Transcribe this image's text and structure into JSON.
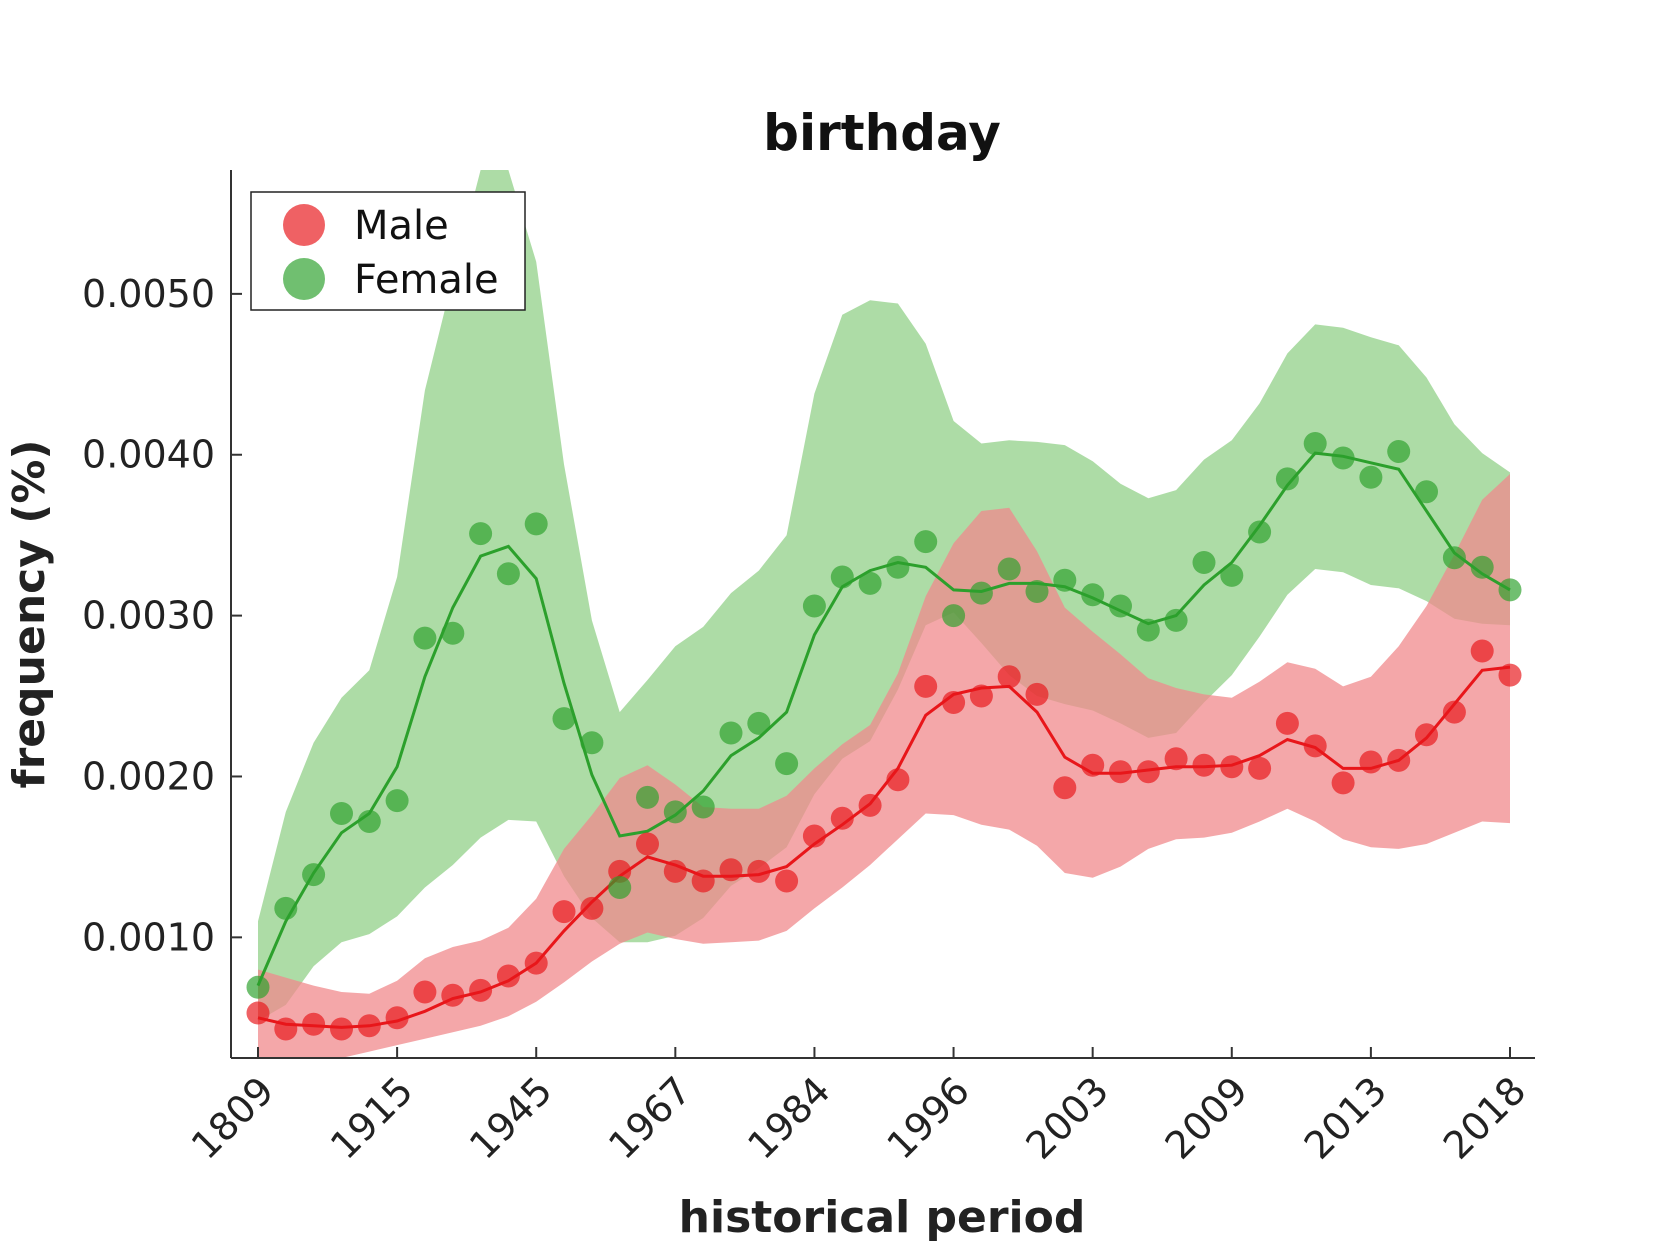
{
  "chart_data": {
    "type": "scatter",
    "title": "birthday",
    "xlabel": "historical period",
    "ylabel": "frequency (%)",
    "x_tick_labels": [
      "1809",
      "1915",
      "1945",
      "1967",
      "1984",
      "1996",
      "2003",
      "2009",
      "2013",
      "2018"
    ],
    "y_tick_labels": [
      "0.0010",
      "0.0020",
      "0.0030",
      "0.0040",
      "0.0050"
    ],
    "y_ticks": [
      0.001,
      0.002,
      0.003,
      0.004,
      0.005
    ],
    "ylim": [
      0.00025,
      0.00577
    ],
    "x_count": 46,
    "legend": {
      "position": "top-left",
      "entries": [
        "Male",
        "Female"
      ]
    },
    "series": [
      {
        "name": "Male",
        "color": "#e8161a",
        "band_color": "#f08a8c",
        "points": [
          0.00053,
          0.00043,
          0.00046,
          0.00043,
          0.00045,
          0.0005,
          0.00066,
          0.00064,
          0.00067,
          0.00076,
          0.00084,
          0.00116,
          0.00118,
          0.00141,
          0.00158,
          0.00141,
          0.00135,
          0.00142,
          0.00141,
          0.00135,
          0.00163,
          0.00174,
          0.00182,
          0.00198,
          0.00256,
          0.00246,
          0.0025,
          0.00262,
          0.00251,
          0.00193,
          0.00207,
          0.00203,
          0.00203,
          0.00211,
          0.00207,
          0.00206,
          0.00205,
          0.00233,
          0.00219,
          0.00196,
          0.00209,
          0.0021,
          0.00226,
          0.0024,
          0.00278,
          0.00263
        ],
        "smooth": [
          0.0005,
          0.00046,
          0.00045,
          0.00044,
          0.00045,
          0.00048,
          0.00054,
          0.00062,
          0.00066,
          0.00073,
          0.00084,
          0.00104,
          0.00122,
          0.00138,
          0.0015,
          0.00145,
          0.00138,
          0.00138,
          0.00139,
          0.00144,
          0.00158,
          0.0017,
          0.00183,
          0.00205,
          0.00238,
          0.00251,
          0.00255,
          0.00256,
          0.0024,
          0.00212,
          0.00202,
          0.00202,
          0.00204,
          0.00206,
          0.00206,
          0.00207,
          0.00213,
          0.00223,
          0.00218,
          0.00205,
          0.00205,
          0.0021,
          0.00224,
          0.00245,
          0.00266,
          0.00268
        ],
        "band_upper": [
          0.0008,
          0.00075,
          0.0007,
          0.00066,
          0.00065,
          0.00073,
          0.00087,
          0.00094,
          0.00098,
          0.00106,
          0.00124,
          0.00155,
          0.00176,
          0.00199,
          0.00207,
          0.00195,
          0.00181,
          0.0018,
          0.0018,
          0.00188,
          0.00205,
          0.0022,
          0.00232,
          0.00264,
          0.00312,
          0.00345,
          0.00365,
          0.00367,
          0.0034,
          0.00305,
          0.0029,
          0.00276,
          0.00261,
          0.00255,
          0.00251,
          0.00249,
          0.00259,
          0.00271,
          0.00267,
          0.00256,
          0.00262,
          0.00281,
          0.00306,
          0.00338,
          0.00372,
          0.00388
        ],
        "band_lower": [
          0.00025,
          0.00025,
          0.00025,
          0.00025,
          0.00029,
          0.00033,
          0.00037,
          0.00041,
          0.00045,
          0.00051,
          0.0006,
          0.00072,
          0.00085,
          0.00096,
          0.00103,
          0.00099,
          0.00096,
          0.00097,
          0.00098,
          0.00104,
          0.00118,
          0.00131,
          0.00145,
          0.00161,
          0.00177,
          0.00176,
          0.0017,
          0.00167,
          0.00157,
          0.0014,
          0.00137,
          0.00144,
          0.00155,
          0.00161,
          0.00162,
          0.00165,
          0.00172,
          0.0018,
          0.00172,
          0.00161,
          0.00156,
          0.00155,
          0.00158,
          0.00165,
          0.00172,
          0.00171
        ]
      },
      {
        "name": "Female",
        "color": "#2ca02c",
        "band_color": "#8ecf84",
        "points": [
          0.00069,
          0.00118,
          0.00139,
          0.00177,
          0.00172,
          0.00185,
          0.00286,
          0.00289,
          0.00351,
          0.00326,
          0.00357,
          0.00236,
          0.00221,
          0.00131,
          0.00187,
          0.00178,
          0.00181,
          0.00227,
          0.00233,
          0.00208,
          0.00306,
          0.00324,
          0.0032,
          0.0033,
          0.00346,
          0.003,
          0.00314,
          0.00329,
          0.00315,
          0.00322,
          0.00313,
          0.00306,
          0.00291,
          0.00297,
          0.00333,
          0.00325,
          0.00352,
          0.00385,
          0.00407,
          0.00398,
          0.00386,
          0.00402,
          0.00377,
          0.00336,
          0.0033,
          0.00316
        ],
        "smooth": [
          0.0007,
          0.0011,
          0.0014,
          0.00165,
          0.00177,
          0.00206,
          0.00262,
          0.00305,
          0.00337,
          0.00343,
          0.00323,
          0.00258,
          0.00201,
          0.00163,
          0.00166,
          0.00176,
          0.00191,
          0.00213,
          0.00224,
          0.0024,
          0.00288,
          0.00318,
          0.00328,
          0.00333,
          0.0033,
          0.00316,
          0.00315,
          0.0032,
          0.0032,
          0.00318,
          0.00311,
          0.00303,
          0.00295,
          0.003,
          0.00319,
          0.00333,
          0.00356,
          0.00381,
          0.00401,
          0.00399,
          0.00395,
          0.00391,
          0.00365,
          0.00339,
          0.00326,
          0.00316
        ],
        "band_upper": [
          0.0011,
          0.00178,
          0.00221,
          0.00249,
          0.00266,
          0.00324,
          0.0044,
          0.0051,
          0.00577,
          0.00577,
          0.0052,
          0.00394,
          0.00297,
          0.0024,
          0.0026,
          0.00281,
          0.00293,
          0.00314,
          0.00328,
          0.0035,
          0.00438,
          0.00487,
          0.00496,
          0.00494,
          0.00469,
          0.00421,
          0.00407,
          0.00409,
          0.00408,
          0.00406,
          0.00396,
          0.00382,
          0.00373,
          0.00378,
          0.00397,
          0.00409,
          0.00432,
          0.00463,
          0.00481,
          0.00479,
          0.00473,
          0.00468,
          0.00448,
          0.00419,
          0.00401,
          0.00389
        ],
        "band_lower": [
          0.00048,
          0.00058,
          0.00082,
          0.00097,
          0.00102,
          0.00113,
          0.00131,
          0.00145,
          0.00162,
          0.00173,
          0.00172,
          0.00138,
          0.00112,
          0.00097,
          0.00097,
          0.00101,
          0.00112,
          0.00132,
          0.00143,
          0.00156,
          0.00189,
          0.00211,
          0.00222,
          0.00254,
          0.00294,
          0.00302,
          0.00283,
          0.00263,
          0.0025,
          0.00245,
          0.00241,
          0.00233,
          0.00224,
          0.00227,
          0.00246,
          0.00263,
          0.00287,
          0.00313,
          0.00329,
          0.00327,
          0.00319,
          0.00317,
          0.00309,
          0.00298,
          0.00295,
          0.00294
        ]
      }
    ]
  }
}
